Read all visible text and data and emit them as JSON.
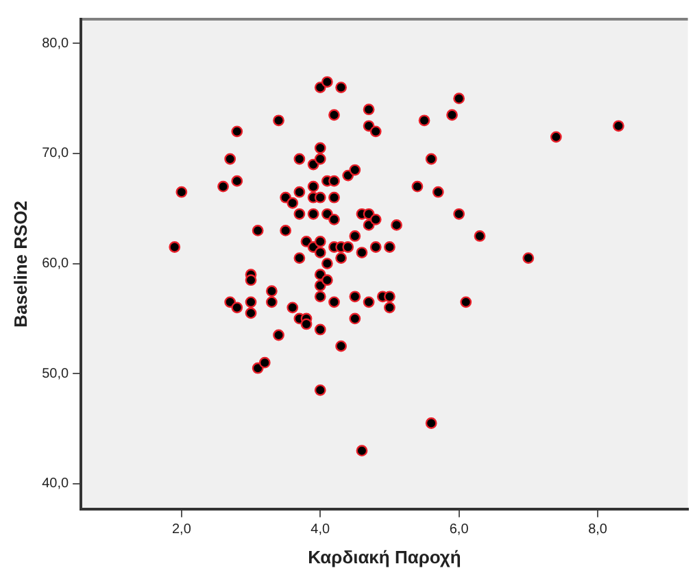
{
  "chart_data": {
    "type": "scatter",
    "xlabel": "Καρδιακή Παροχή",
    "ylabel": "Baseline RSO2",
    "xlim": [
      0.55,
      9.3
    ],
    "ylim": [
      37.7,
      82.2
    ],
    "xticks": [
      {
        "value": 2,
        "label": "2,0"
      },
      {
        "value": 4,
        "label": "4,0"
      },
      {
        "value": 6,
        "label": "6,0"
      },
      {
        "value": 8,
        "label": "8,0"
      }
    ],
    "yticks": [
      {
        "value": 40,
        "label": "40,0"
      },
      {
        "value": 50,
        "label": "50,0"
      },
      {
        "value": 60,
        "label": "60,0"
      },
      {
        "value": 70,
        "label": "70,0"
      },
      {
        "value": 80,
        "label": "80,0"
      }
    ],
    "grid": false,
    "legend": false,
    "marker": "circle",
    "series": [
      {
        "color": "#000000",
        "x": [
          1.9,
          2.0,
          2.6,
          2.7,
          2.8,
          2.8,
          2.7,
          2.8,
          3.0,
          3.0,
          3.0,
          3.0,
          3.1,
          3.1,
          3.2,
          3.3,
          3.3,
          3.4,
          3.4,
          3.5,
          3.5,
          3.6,
          3.6,
          3.7,
          3.7,
          3.7,
          3.7,
          3.7,
          3.8,
          3.8,
          3.8,
          3.9,
          3.9,
          3.9,
          3.9,
          3.9,
          4.0,
          4.1,
          4.0,
          4.0,
          4.0,
          4.0,
          4.0,
          4.0,
          4.0,
          4.0,
          4.0,
          4.0,
          4.1,
          4.1,
          4.1,
          4.1,
          4.2,
          4.2,
          4.2,
          4.2,
          4.2,
          4.2,
          4.3,
          4.3,
          4.3,
          4.3,
          4.4,
          4.4,
          4.5,
          4.5,
          4.5,
          4.5,
          4.6,
          4.6,
          4.6,
          4.7,
          4.7,
          4.7,
          4.7,
          4.7,
          4.8,
          4.8,
          4.8,
          4.9,
          5.0,
          5.0,
          5.0,
          5.1,
          5.4,
          5.5,
          5.6,
          5.6,
          5.7,
          5.9,
          6.0,
          6.0,
          6.1,
          6.3,
          7.0,
          7.4,
          8.3
        ],
        "values": [
          61.5,
          66.5,
          67.0,
          69.5,
          72.0,
          67.5,
          56.5,
          56.0,
          59.0,
          58.5,
          56.5,
          55.5,
          63.0,
          50.5,
          51.0,
          57.5,
          56.5,
          73.0,
          53.5,
          66.0,
          63.0,
          65.5,
          56.0,
          69.5,
          66.5,
          64.5,
          55.0,
          60.5,
          62.0,
          55.0,
          54.5,
          67.0,
          69.0,
          66.0,
          64.5,
          61.5,
          76.0,
          76.5,
          70.5,
          69.5,
          66.0,
          62.0,
          61.0,
          59.0,
          58.0,
          57.0,
          54.0,
          48.5,
          64.5,
          67.5,
          60.0,
          58.5,
          73.5,
          67.5,
          66.0,
          64.0,
          61.5,
          56.5,
          76.0,
          61.5,
          60.5,
          52.5,
          68.0,
          61.5,
          68.5,
          57.0,
          55.0,
          62.5,
          64.5,
          61.0,
          43.0,
          74.0,
          72.5,
          64.5,
          63.5,
          56.5,
          72.0,
          64.0,
          61.5,
          57.0,
          61.5,
          57.0,
          56.0,
          63.5,
          67.0,
          73.0,
          69.5,
          45.5,
          66.5,
          73.5,
          75.0,
          64.5,
          56.5,
          62.5,
          60.5,
          71.5,
          72.5
        ]
      }
    ]
  }
}
